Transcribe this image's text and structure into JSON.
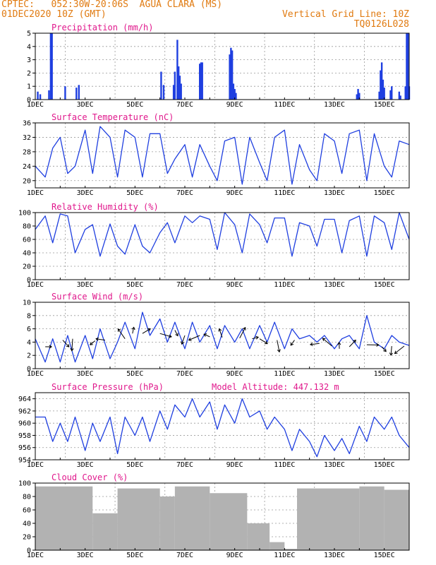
{
  "header": {
    "line1": "CPTEC:   052:30W-20:06S  AGUA CLARA (MS)",
    "line2": "01DEC2020 10Z (GMT)",
    "right1": "Vertical Grid Line: 10Z",
    "right2": "TQ0126L028"
  },
  "colors": {
    "header": "#e07a10",
    "title": "#e0188c",
    "line": "#1f3fe0",
    "bar": "#1f3fe0",
    "cloud": "#b2b2b2",
    "grid": "#999999",
    "arrow": "#000000"
  },
  "chart_data": [
    {
      "type": "bar",
      "title": "Precipitation (mm/h)",
      "ylim": [
        0,
        5
      ],
      "yticks": [
        0,
        1,
        2,
        3,
        4,
        5
      ],
      "x_tick_labels": [
        "1DEC",
        "3DEC",
        "5DEC",
        "7DEC",
        "9DEC",
        "11DEC",
        "13DEC",
        "15DEC"
      ],
      "bars": [
        [
          0.1,
          0.6
        ],
        [
          0.2,
          0.4
        ],
        [
          0.55,
          0.7
        ],
        [
          0.62,
          5.0
        ],
        [
          0.67,
          5.0
        ],
        [
          1.2,
          1.0
        ],
        [
          1.65,
          0.9
        ],
        [
          1.75,
          1.1
        ],
        [
          5.05,
          2.1
        ],
        [
          5.15,
          1.1
        ],
        [
          5.55,
          1.1
        ],
        [
          5.6,
          2.1
        ],
        [
          5.7,
          4.5
        ],
        [
          5.75,
          2.5
        ],
        [
          5.8,
          1.8
        ],
        [
          5.85,
          1.2
        ],
        [
          6.6,
          2.7
        ],
        [
          6.65,
          2.8
        ],
        [
          6.7,
          2.8
        ],
        [
          7.8,
          3.4
        ],
        [
          7.85,
          3.9
        ],
        [
          7.9,
          3.7
        ],
        [
          7.95,
          1.2
        ],
        [
          8.0,
          0.8
        ],
        [
          8.05,
          0.5
        ],
        [
          12.9,
          0.4
        ],
        [
          12.95,
          0.8
        ],
        [
          13.0,
          0.5
        ],
        [
          13.8,
          0.6
        ],
        [
          13.85,
          2.2
        ],
        [
          13.9,
          2.8
        ],
        [
          13.95,
          1.5
        ],
        [
          14.0,
          0.9
        ],
        [
          14.25,
          0.7
        ],
        [
          14.3,
          1.0
        ],
        [
          14.6,
          0.6
        ],
        [
          14.65,
          0.3
        ],
        [
          14.85,
          1.0
        ],
        [
          14.9,
          5.0
        ],
        [
          14.95,
          5.0
        ],
        [
          15.0,
          1.0
        ]
      ]
    },
    {
      "type": "line",
      "title": "Surface Temperature (nC)",
      "ylim": [
        18,
        36
      ],
      "yticks": [
        20,
        24,
        28,
        32,
        36
      ],
      "x_tick_labels": [
        "1DEC",
        "3DEC",
        "5DEC",
        "7DEC",
        "9DEC",
        "11DEC",
        "13DEC",
        "15DEC"
      ],
      "x": [
        0,
        0.4,
        0.7,
        1.0,
        1.3,
        1.6,
        2.0,
        2.3,
        2.6,
        3.0,
        3.3,
        3.6,
        4.0,
        4.3,
        4.6,
        5.0,
        5.3,
        5.6,
        6.0,
        6.3,
        6.6,
        7.0,
        7.3,
        7.6,
        8.0,
        8.3,
        8.6,
        9.0,
        9.3,
        9.6,
        10.0,
        10.3,
        10.6,
        11.0,
        11.3,
        11.6,
        12.0,
        12.3,
        12.6,
        13.0,
        13.3,
        13.6,
        14.0,
        14.3,
        14.6,
        15.0
      ],
      "y": [
        24,
        21,
        29,
        32,
        22,
        24,
        34,
        22,
        35,
        32,
        21,
        34,
        32,
        21,
        33,
        33,
        22,
        26,
        30,
        21,
        30,
        24,
        20,
        31,
        32,
        19,
        32,
        25,
        20,
        32,
        34,
        19,
        30,
        23,
        20,
        33,
        31,
        22,
        33,
        34,
        20,
        33,
        24,
        21,
        31,
        30
      ]
    },
    {
      "type": "line",
      "title": "Relative Humidity (%)",
      "ylim": [
        0,
        100
      ],
      "yticks": [
        0,
        20,
        40,
        60,
        80,
        100
      ],
      "x_tick_labels": [
        "1DEC",
        "3DEC",
        "5DEC",
        "7DEC",
        "9DEC",
        "11DEC",
        "13DEC",
        "15DEC"
      ],
      "x": [
        0,
        0.4,
        0.7,
        1.0,
        1.3,
        1.6,
        2.0,
        2.3,
        2.6,
        3.0,
        3.3,
        3.6,
        4.0,
        4.3,
        4.6,
        5.0,
        5.3,
        5.6,
        6.0,
        6.3,
        6.6,
        7.0,
        7.3,
        7.6,
        8.0,
        8.3,
        8.6,
        9.0,
        9.3,
        9.6,
        10.0,
        10.3,
        10.6,
        11.0,
        11.3,
        11.6,
        12.0,
        12.3,
        12.6,
        13.0,
        13.3,
        13.6,
        14.0,
        14.3,
        14.6,
        15.0
      ],
      "y": [
        75,
        95,
        55,
        98,
        95,
        40,
        75,
        82,
        35,
        83,
        50,
        38,
        82,
        50,
        40,
        70,
        85,
        55,
        95,
        85,
        95,
        90,
        45,
        100,
        82,
        40,
        98,
        82,
        55,
        92,
        92,
        35,
        85,
        80,
        50,
        90,
        90,
        40,
        88,
        95,
        35,
        95,
        85,
        45,
        100,
        60
      ]
    },
    {
      "type": "line",
      "title": "Surface Wind (m/s)",
      "ylim": [
        0,
        10
      ],
      "yticks": [
        0,
        2,
        4,
        6,
        8,
        10
      ],
      "x_tick_labels": [
        "1DEC",
        "3DEC",
        "5DEC",
        "7DEC",
        "9DEC",
        "11DEC",
        "13DEC",
        "15DEC"
      ],
      "x": [
        0,
        0.4,
        0.7,
        1.0,
        1.3,
        1.6,
        2.0,
        2.3,
        2.6,
        3.0,
        3.3,
        3.6,
        4.0,
        4.3,
        4.6,
        5.0,
        5.3,
        5.6,
        6.0,
        6.3,
        6.6,
        7.0,
        7.3,
        7.6,
        8.0,
        8.3,
        8.6,
        9.0,
        9.3,
        9.6,
        10.0,
        10.3,
        10.6,
        11.0,
        11.3,
        11.6,
        12.0,
        12.3,
        12.6,
        13.0,
        13.3,
        13.6,
        14.0,
        14.3,
        14.6,
        15.0
      ],
      "y": [
        4.5,
        1,
        4.5,
        1,
        5,
        1,
        5,
        1.5,
        6,
        1.5,
        4,
        7,
        3,
        8.5,
        5,
        7.5,
        4,
        7,
        3,
        7,
        4,
        6.5,
        3,
        6.5,
        4,
        6,
        3,
        6.5,
        4,
        7,
        3,
        6,
        4.5,
        5,
        4,
        5,
        3,
        4.5,
        5,
        3,
        8,
        4,
        3,
        5,
        4,
        3.5
      ],
      "arrows": [
        [
          0.4,
          3.3,
          2.5
        ],
        [
          1.1,
          4.3,
          2.5
        ],
        [
          1.5,
          4.5,
          2.5
        ],
        [
          2.4,
          4.2,
          2.5
        ],
        [
          2.8,
          4.3,
          2.5
        ],
        [
          3.6,
          4.5,
          2.5
        ],
        [
          3.9,
          5.3,
          2.5
        ],
        [
          4.3,
          5.3,
          2.5
        ],
        [
          5.0,
          5.3,
          3.0
        ],
        [
          5.6,
          5.8,
          2.5
        ],
        [
          6.0,
          5.0,
          2.5
        ],
        [
          6.6,
          5.0,
          2.5
        ],
        [
          7.0,
          4.8,
          2.5
        ],
        [
          7.5,
          4.7,
          2.5
        ],
        [
          8.2,
          4.6,
          2.5
        ],
        [
          8.7,
          4.5,
          2.5
        ],
        [
          9.0,
          4.5,
          2.5
        ],
        [
          9.7,
          4.3,
          2.5
        ],
        [
          10.4,
          4.3,
          2.5
        ],
        [
          11.4,
          3.8,
          2.5
        ],
        [
          11.9,
          3.4,
          2.5
        ],
        [
          12.2,
          3.0,
          2.5
        ],
        [
          12.6,
          3.3,
          2.5
        ],
        [
          13.3,
          3.6,
          2.5
        ],
        [
          13.9,
          3.3,
          2.5
        ],
        [
          14.3,
          3.4,
          2.5
        ],
        [
          14.8,
          3.4,
          2.5
        ]
      ]
    },
    {
      "type": "line",
      "title": "Surface Pressure (hPa)",
      "subtitle": "Model Altitude: 447.132 m",
      "ylim": [
        954,
        965
      ],
      "yticks": [
        954,
        956,
        958,
        960,
        962,
        964
      ],
      "x_tick_labels": [
        "1DEC",
        "3DEC",
        "5DEC",
        "7DEC",
        "9DEC",
        "11DEC",
        "13DEC",
        "15DEC"
      ],
      "x": [
        0,
        0.4,
        0.7,
        1.0,
        1.3,
        1.6,
        2.0,
        2.3,
        2.6,
        3.0,
        3.3,
        3.6,
        4.0,
        4.3,
        4.6,
        5.0,
        5.3,
        5.6,
        6.0,
        6.3,
        6.6,
        7.0,
        7.3,
        7.6,
        8.0,
        8.3,
        8.6,
        9.0,
        9.3,
        9.6,
        10.0,
        10.3,
        10.6,
        11.0,
        11.3,
        11.6,
        12.0,
        12.3,
        12.6,
        13.0,
        13.3,
        13.6,
        14.0,
        14.3,
        14.6,
        15.0
      ],
      "y": [
        961,
        961,
        957,
        960,
        957,
        961,
        955.5,
        960,
        957,
        961,
        955,
        961,
        958,
        961,
        957,
        962,
        959,
        963,
        961,
        964,
        961,
        963.5,
        959,
        963,
        960,
        964,
        961,
        962,
        959,
        961,
        959,
        955.5,
        959,
        957,
        954.5,
        958,
        955.5,
        957.5,
        955,
        959.5,
        957,
        961,
        959,
        961,
        958,
        956
      ]
    },
    {
      "type": "bar",
      "title": "Cloud Cover (%)",
      "ylim": [
        0,
        100
      ],
      "yticks": [
        0,
        20,
        40,
        60,
        80,
        100
      ],
      "x_tick_labels": [
        "1DEC",
        "3DEC",
        "5DEC",
        "7DEC",
        "9DEC",
        "11DEC",
        "13DEC",
        "15DEC"
      ],
      "segments": [
        [
          0.0,
          2.3,
          95
        ],
        [
          2.3,
          3.3,
          55
        ],
        [
          3.3,
          5.0,
          92
        ],
        [
          5.0,
          5.6,
          80
        ],
        [
          5.6,
          7.0,
          95
        ],
        [
          7.0,
          8.5,
          85
        ],
        [
          8.5,
          9.4,
          40
        ],
        [
          9.4,
          10.0,
          12
        ],
        [
          10.0,
          10.5,
          2
        ],
        [
          10.5,
          13.0,
          92
        ],
        [
          13.0,
          14.0,
          95
        ],
        [
          14.0,
          15.0,
          90
        ]
      ]
    }
  ]
}
